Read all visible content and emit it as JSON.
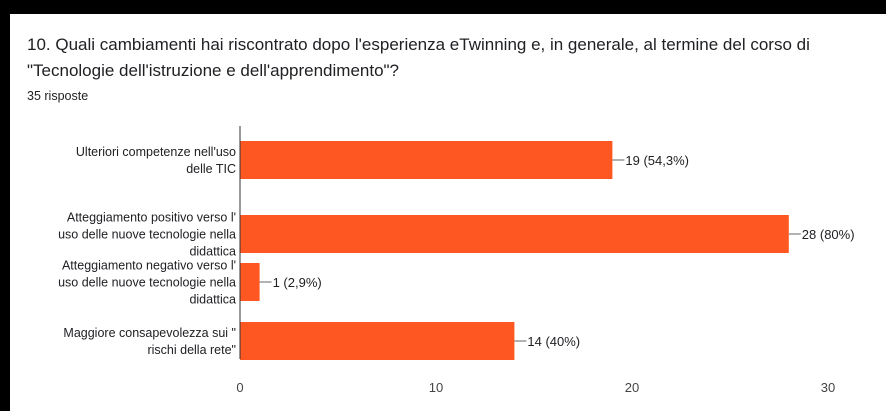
{
  "question": {
    "title": "10. Quali cambiamenti hai riscontrato dopo l'esperienza eTwinning e, in generale, al termine del corso di \"Tecnologie dell'istruzione e dell'apprendimento\"?",
    "responses": "35 risposte"
  },
  "colors": {
    "bar": "#ff5722",
    "axis": "#333333",
    "text": "#202124"
  },
  "chart_data": {
    "type": "bar",
    "orientation": "horizontal",
    "categories": [
      [
        "Ulteriori competenze nell'uso",
        "delle TIC"
      ],
      [
        "Atteggiamento positivo verso l'",
        "uso delle nuove tecnologie nella",
        "didattica"
      ],
      [
        "Atteggiamento negativo verso l'",
        "uso delle nuove tecnologie nella",
        "didattica"
      ],
      [
        "Maggiore consapevolezza sui \"",
        "rischi della rete\""
      ]
    ],
    "values": [
      19,
      28,
      1,
      14
    ],
    "value_labels": [
      "19 (54,3%)",
      "28 (80%)",
      "1 (2,9%)",
      "14 (40%)"
    ],
    "xlim": [
      0,
      30
    ],
    "xticks": [
      0,
      10,
      20,
      30
    ],
    "grid": false
  }
}
